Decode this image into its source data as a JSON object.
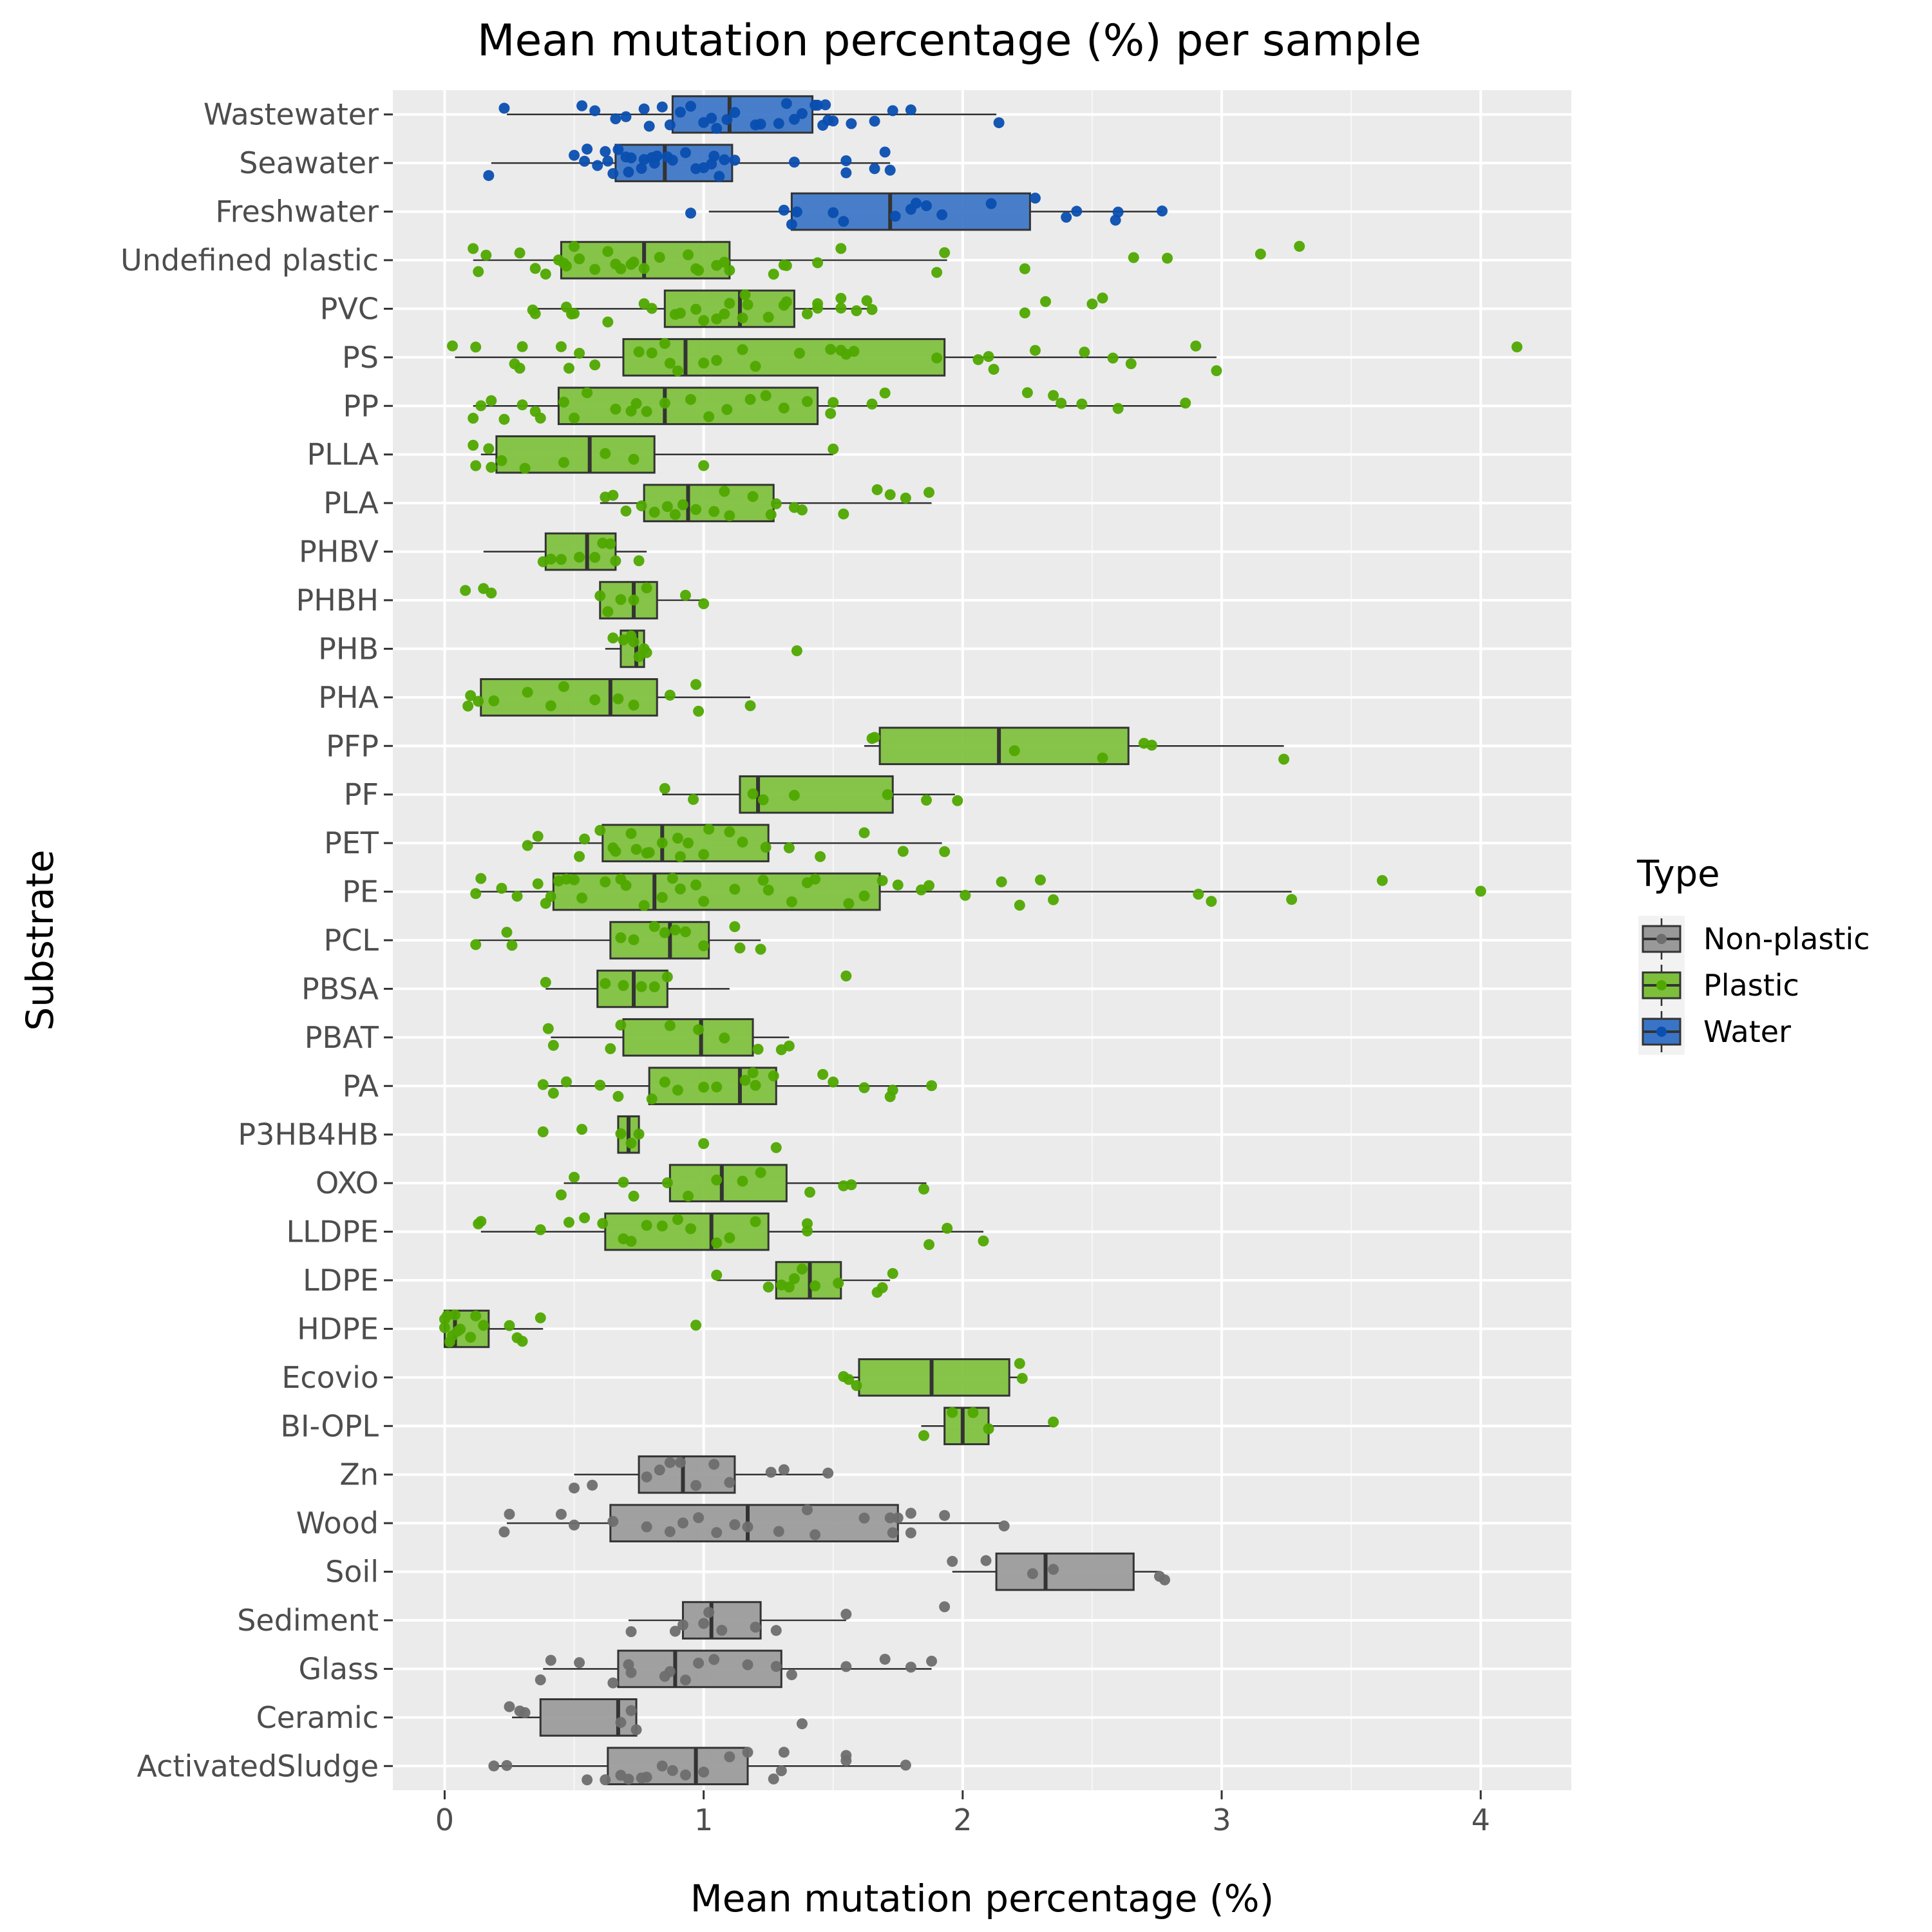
{
  "chart_data": {
    "type": "boxplot",
    "title": "Mean mutation percentage (%) per sample",
    "xlabel": "Mean mutation percentage (%)",
    "ylabel": "Substrate",
    "xlim": [
      -0.2,
      4.35
    ],
    "x_ticks": [
      0,
      1,
      2,
      3,
      4
    ],
    "grid": true,
    "legend": {
      "title": "Type",
      "placement": "right",
      "entries": [
        {
          "name": "Non-plastic",
          "color": "#999999",
          "point_color": "#6e6e6e"
        },
        {
          "name": "Plastic",
          "color": "#7dbf3b",
          "point_color": "#4fa800"
        },
        {
          "name": "Water",
          "color": "#3a74c6",
          "point_color": "#0a4fb0"
        }
      ]
    },
    "categories": [
      "Wastewater",
      "Seawater",
      "Freshwater",
      "Undefined plastic",
      "PVC",
      "PS",
      "PP",
      "PLLA",
      "PLA",
      "PHBV",
      "PHBH",
      "PHB",
      "PHA",
      "PFP",
      "PF",
      "PET",
      "PE",
      "PCL",
      "PBSA",
      "PBAT",
      "PA",
      "P3HB4HB",
      "OXO",
      "LLDPE",
      "LDPE",
      "HDPE",
      "Ecovio",
      "BI-OPL",
      "Zn",
      "Wood",
      "Soil",
      "Sediment",
      "Glass",
      "Ceramic",
      "ActivatedSludge"
    ],
    "boxes": [
      {
        "cat": "Wastewater",
        "type": "Water",
        "min": 0.24,
        "q1": 0.88,
        "median": 1.1,
        "q3": 1.42,
        "max": 2.13,
        "points": [
          0.66,
          0.77,
          1.03,
          1.05,
          1.09,
          1.35,
          1.43,
          1.46,
          1.48,
          1.57,
          1.66,
          1.8,
          2.14,
          0.53,
          0.7,
          0.84,
          0.95,
          1.0,
          1.2,
          1.22,
          1.32,
          1.38,
          1.5,
          1.73,
          0.23,
          0.58,
          0.79,
          0.87,
          0.91,
          1.12,
          1.29,
          1.44,
          1.47
        ]
      },
      {
        "cat": "Seawater",
        "type": "Water",
        "min": 0.18,
        "q1": 0.66,
        "median": 0.85,
        "q3": 1.11,
        "max": 1.72,
        "points": [
          0.72,
          0.77,
          0.81,
          1.06,
          1.35,
          1.72,
          0.5,
          0.54,
          0.65,
          0.71,
          0.8,
          1.03,
          1.55,
          1.66,
          1.7,
          0.59,
          0.62,
          0.76,
          0.88,
          0.97,
          1.04,
          1.08,
          1.12,
          1.55,
          0.17,
          0.63,
          0.67,
          0.82,
          0.93,
          1.0,
          0.55,
          0.7,
          0.86
        ]
      },
      {
        "cat": "Freshwater",
        "type": "Water",
        "min": 1.02,
        "q1": 1.34,
        "median": 1.72,
        "q3": 2.26,
        "max": 2.77,
        "points": [
          1.8,
          2.11,
          2.59,
          2.77,
          1.5,
          1.54,
          1.92,
          2.4,
          2.28,
          0.95,
          1.31,
          1.36,
          1.74,
          1.86,
          2.44,
          1.34,
          1.82,
          2.6
        ]
      },
      {
        "cat": "Undefined plastic",
        "type": "Plastic",
        "min": 0.11,
        "q1": 0.45,
        "median": 0.77,
        "q3": 1.1,
        "max": 1.94,
        "points": [
          0.13,
          0.46,
          0.5,
          0.66,
          0.72,
          0.83,
          0.97,
          1.05,
          3.15,
          0.35,
          0.39,
          0.44,
          0.63,
          0.73,
          1.31,
          0.98,
          1.08,
          1.32,
          1.53,
          1.9,
          0.11,
          0.29,
          0.52,
          0.68,
          0.94,
          1.1,
          1.93,
          2.24,
          2.66,
          2.79,
          3.3,
          0.16,
          0.47,
          0.58,
          0.77,
          1.27,
          1.44
        ]
      },
      {
        "cat": "PVC",
        "type": "Plastic",
        "min": 0.34,
        "q1": 0.85,
        "median": 1.14,
        "q3": 1.35,
        "max": 1.64,
        "points": [
          1.05,
          1.1,
          1.16,
          1.32,
          1.65,
          2.24,
          0.49,
          0.5,
          0.8,
          0.91,
          1.0,
          1.4,
          1.53,
          1.59,
          1.63,
          0.35,
          0.47,
          0.77,
          1.08,
          1.17,
          1.31,
          2.32,
          2.5,
          2.54,
          0.34,
          0.63,
          0.89,
          0.97,
          1.15,
          1.25,
          1.44,
          1.53,
          1.44
        ]
      },
      {
        "cat": "PS",
        "type": "Plastic",
        "min": 0.04,
        "q1": 0.69,
        "median": 0.93,
        "q3": 1.93,
        "max": 2.98,
        "points": [
          0.12,
          0.48,
          0.8,
          0.85,
          1.05,
          1.55,
          2.9,
          4.14,
          0.3,
          0.45,
          0.58,
          0.87,
          1.0,
          1.37,
          1.49,
          2.1,
          2.12,
          2.47,
          0.03,
          0.29,
          0.52,
          0.9,
          1.15,
          1.53,
          2.06,
          2.98,
          2.28,
          0.27,
          0.75,
          1.2,
          1.58,
          1.9,
          2.65,
          2.58
        ]
      },
      {
        "cat": "PP",
        "type": "Plastic",
        "min": 0.11,
        "q1": 0.44,
        "median": 0.85,
        "q3": 1.44,
        "max": 2.86,
        "points": [
          0.35,
          0.72,
          0.95,
          1.24,
          1.49,
          2.25,
          2.35,
          0.14,
          0.3,
          0.46,
          0.78,
          1.09,
          1.31,
          1.4,
          1.65,
          2.46,
          2.6,
          0.18,
          0.37,
          0.5,
          0.66,
          0.85,
          1.02,
          1.18,
          1.7,
          2.38,
          2.86,
          0.11,
          0.23,
          0.55,
          0.74,
          1.5
        ]
      },
      {
        "cat": "PLLA",
        "type": "Plastic",
        "min": 0.14,
        "q1": 0.2,
        "median": 0.56,
        "q3": 0.81,
        "max": 1.5,
        "points": [
          0.11,
          0.12,
          0.17,
          0.18,
          0.22,
          0.31,
          0.46,
          0.62,
          0.73,
          1.0,
          1.5
        ]
      },
      {
        "cat": "PLA",
        "type": "Plastic",
        "min": 0.6,
        "q1": 0.77,
        "median": 0.94,
        "q3": 1.27,
        "max": 1.88,
        "points": [
          0.7,
          0.76,
          0.86,
          0.92,
          1.08,
          1.26,
          1.38,
          1.67,
          1.35,
          0.62,
          0.81,
          0.97,
          1.1,
          1.28,
          1.54,
          1.72,
          1.87,
          0.65,
          0.89,
          1.04,
          1.19,
          1.78
        ]
      },
      {
        "cat": "PHBV",
        "type": "Plastic",
        "min": 0.15,
        "q1": 0.39,
        "median": 0.55,
        "q3": 0.66,
        "max": 0.78,
        "points": [
          0.38,
          0.45,
          0.52,
          0.58,
          0.61,
          0.66,
          0.75,
          0.41,
          0.64
        ]
      },
      {
        "cat": "PHBH",
        "type": "Plastic",
        "min": 0.6,
        "q1": 0.6,
        "median": 0.73,
        "q3": 0.82,
        "max": 1.0,
        "points": [
          0.08,
          0.15,
          0.18,
          0.6,
          0.68,
          0.73,
          0.78,
          0.93,
          1.0,
          0.63
        ]
      },
      {
        "cat": "PHB",
        "type": "Plastic",
        "min": 0.62,
        "q1": 0.68,
        "median": 0.74,
        "q3": 0.77,
        "max": 0.78,
        "points": [
          0.69,
          0.72,
          0.73,
          0.75,
          0.77,
          0.78,
          1.36,
          0.65
        ]
      },
      {
        "cat": "PHA",
        "type": "Plastic",
        "min": 0.14,
        "q1": 0.14,
        "median": 0.64,
        "q3": 0.82,
        "max": 1.18,
        "points": [
          0.09,
          0.1,
          0.13,
          0.19,
          0.32,
          0.46,
          0.58,
          0.67,
          0.73,
          0.87,
          0.97,
          0.98,
          1.18,
          0.41
        ]
      },
      {
        "cat": "PFP",
        "type": "Plastic",
        "min": 1.62,
        "q1": 1.68,
        "median": 2.14,
        "q3": 2.64,
        "max": 3.24,
        "points": [
          1.65,
          1.66,
          2.2,
          2.54,
          2.7,
          2.73,
          3.24
        ]
      },
      {
        "cat": "PF",
        "type": "Plastic",
        "min": 0.84,
        "q1": 1.14,
        "median": 1.21,
        "q3": 1.73,
        "max": 1.97,
        "points": [
          0.96,
          1.19,
          1.23,
          1.35,
          1.71,
          1.86,
          1.98,
          0.85
        ]
      },
      {
        "cat": "PET",
        "type": "Plastic",
        "min": 0.32,
        "q1": 0.61,
        "median": 0.84,
        "q3": 1.25,
        "max": 1.92,
        "points": [
          0.36,
          0.6,
          0.72,
          0.78,
          0.84,
          0.9,
          1.02,
          1.1,
          1.45,
          1.93,
          0.32,
          0.52,
          0.66,
          0.74,
          0.79,
          0.91,
          1.24,
          1.33,
          1.62,
          1.77,
          0.54,
          0.65,
          0.94,
          1.0,
          1.15
        ]
      },
      {
        "cat": "PE",
        "type": "Plastic",
        "min": 0.12,
        "q1": 0.42,
        "median": 0.81,
        "q3": 1.68,
        "max": 3.27,
        "points": [
          0.14,
          0.41,
          0.44,
          0.62,
          0.77,
          0.91,
          1.25,
          1.43,
          1.56,
          1.84,
          2.01,
          2.22,
          2.35,
          3.27,
          0.22,
          0.36,
          0.53,
          0.68,
          0.88,
          1.0,
          1.12,
          1.34,
          1.62,
          1.75,
          2.15,
          2.3,
          2.91,
          0.12,
          0.28,
          0.5,
          0.7,
          0.97,
          1.23,
          1.4,
          1.69,
          1.87,
          2.96,
          3.62,
          4.0,
          0.39,
          0.47,
          0.84
        ]
      },
      {
        "cat": "PCL",
        "type": "Plastic",
        "min": 0.12,
        "q1": 0.64,
        "median": 0.87,
        "q3": 1.02,
        "max": 1.22,
        "points": [
          0.26,
          0.68,
          0.81,
          0.89,
          0.93,
          1.0,
          1.22,
          0.12,
          0.24,
          0.73,
          0.85,
          1.14,
          1.12
        ]
      },
      {
        "cat": "PBSA",
        "type": "Plastic",
        "min": 0.39,
        "q1": 0.59,
        "median": 0.73,
        "q3": 0.86,
        "max": 1.1,
        "points": [
          0.39,
          0.62,
          0.69,
          0.76,
          0.81,
          0.86,
          1.55
        ]
      },
      {
        "cat": "PBAT",
        "type": "Plastic",
        "min": 0.41,
        "q1": 0.69,
        "median": 0.99,
        "q3": 1.19,
        "max": 1.33,
        "points": [
          0.64,
          0.87,
          1.08,
          1.3,
          1.33,
          0.4,
          0.68,
          0.98,
          1.21,
          0.42
        ]
      },
      {
        "cat": "PA",
        "type": "Plastic",
        "min": 0.38,
        "q1": 0.79,
        "median": 1.14,
        "q3": 1.28,
        "max": 1.88,
        "points": [
          0.47,
          0.8,
          1.16,
          1.46,
          1.5,
          1.73,
          1.88,
          0.38,
          0.6,
          0.9,
          1.05,
          1.19,
          1.62,
          1.72,
          0.42,
          0.67,
          0.85,
          1.2,
          1.27,
          1.0
        ]
      },
      {
        "cat": "P3HB4HB",
        "type": "Plastic",
        "min": 0.67,
        "q1": 0.67,
        "median": 0.71,
        "q3": 0.75,
        "max": 0.76,
        "points": [
          0.53,
          0.68,
          0.72,
          0.75,
          0.38,
          1.0,
          1.28
        ]
      },
      {
        "cat": "OXO",
        "type": "Plastic",
        "min": 0.46,
        "q1": 0.87,
        "median": 1.07,
        "q3": 1.32,
        "max": 1.86,
        "points": [
          0.86,
          1.05,
          1.15,
          1.41,
          1.57,
          0.45,
          0.73,
          0.94,
          1.22,
          1.54,
          1.85,
          0.5,
          0.69
        ]
      },
      {
        "cat": "LLDPE",
        "type": "Plastic",
        "min": 0.14,
        "q1": 0.62,
        "median": 1.03,
        "q3": 1.25,
        "max": 2.08,
        "points": [
          0.14,
          0.72,
          0.78,
          0.9,
          1.2,
          2.08,
          0.48,
          0.54,
          0.69,
          0.84,
          1.05,
          1.4,
          1.87,
          1.94,
          0.13,
          0.37,
          0.61,
          0.95,
          1.1,
          1.4
        ]
      },
      {
        "cat": "LDPE",
        "type": "Plastic",
        "min": 1.05,
        "q1": 1.28,
        "median": 1.41,
        "q3": 1.53,
        "max": 1.72,
        "points": [
          1.25,
          1.3,
          1.43,
          1.67,
          1.69,
          1.05,
          1.33,
          1.38,
          1.52,
          1.73,
          1.35
        ]
      },
      {
        "cat": "HDPE",
        "type": "Plastic",
        "min": 0.0,
        "q1": 0.0,
        "median": 0.04,
        "q3": 0.17,
        "max": 0.38,
        "points": [
          0.01,
          0.02,
          0.06,
          0.1,
          0.28,
          0.0,
          0.03,
          0.05,
          0.12,
          0.3,
          0.0,
          0.04,
          0.15,
          0.25,
          0.37,
          0.97
        ]
      },
      {
        "cat": "Ecovio",
        "type": "Plastic",
        "min": 1.55,
        "q1": 1.6,
        "median": 1.88,
        "q3": 2.18,
        "max": 2.23,
        "points": [
          1.54,
          1.56,
          1.59,
          2.23,
          2.22
        ]
      },
      {
        "cat": "BI-OPL",
        "type": "Plastic",
        "min": 1.84,
        "q1": 1.93,
        "median": 2.0,
        "q3": 2.1,
        "max": 2.35,
        "points": [
          1.85,
          1.96,
          2.1,
          2.04,
          2.35
        ]
      },
      {
        "cat": "Zn",
        "type": "Non-plastic",
        "min": 0.5,
        "q1": 0.75,
        "median": 0.92,
        "q3": 1.12,
        "max": 1.48,
        "points": [
          0.83,
          0.91,
          1.04,
          1.31,
          0.5,
          0.78,
          0.97,
          1.26,
          0.57,
          0.87,
          1.1,
          1.48
        ]
      },
      {
        "cat": "Wood",
        "type": "Non-plastic",
        "min": 0.24,
        "q1": 0.64,
        "median": 1.17,
        "q3": 1.75,
        "max": 2.15,
        "points": [
          0.65,
          0.98,
          1.29,
          1.43,
          1.75,
          2.16,
          0.45,
          0.78,
          0.92,
          1.12,
          1.4,
          1.62,
          1.72,
          1.8,
          1.93,
          0.25,
          0.5,
          0.87,
          1.05,
          1.17,
          1.73,
          1.8,
          0.23
        ]
      },
      {
        "cat": "Soil",
        "type": "Non-plastic",
        "min": 1.96,
        "q1": 2.13,
        "median": 2.32,
        "q3": 2.66,
        "max": 2.76,
        "points": [
          2.09,
          2.76,
          2.78,
          1.96,
          2.27,
          2.35
        ]
      },
      {
        "cat": "Sediment",
        "type": "Non-plastic",
        "min": 0.71,
        "q1": 0.92,
        "median": 1.03,
        "q3": 1.22,
        "max": 1.55,
        "points": [
          0.89,
          1.0,
          1.02,
          1.28,
          1.55,
          0.72,
          0.92,
          1.07,
          1.2,
          1.93
        ]
      },
      {
        "cat": "Glass",
        "type": "Non-plastic",
        "min": 0.38,
        "q1": 0.67,
        "median": 0.89,
        "q3": 1.3,
        "max": 1.88,
        "points": [
          0.37,
          0.65,
          0.85,
          0.98,
          1.04,
          1.7,
          0.41,
          0.71,
          0.93,
          1.17,
          1.34,
          1.88,
          0.52,
          0.72,
          0.87,
          1.55,
          1.8,
          1.28
        ]
      },
      {
        "cat": "Ceramic",
        "type": "Non-plastic",
        "min": 0.26,
        "q1": 0.37,
        "median": 0.67,
        "q3": 0.74,
        "max": 0.74,
        "points": [
          0.29,
          0.72,
          0.74,
          1.38,
          0.31,
          0.25,
          0.68
        ]
      },
      {
        "cat": "ActivatedSludge",
        "type": "Non-plastic",
        "min": 0.2,
        "q1": 0.63,
        "median": 0.97,
        "q3": 1.17,
        "max": 1.77,
        "points": [
          0.68,
          0.84,
          1.0,
          1.31,
          1.55,
          0.19,
          0.55,
          0.78,
          0.93,
          1.1,
          1.3,
          1.78,
          0.24,
          0.62,
          0.71,
          0.76,
          1.17,
          1.27,
          1.55,
          0.88
        ]
      }
    ]
  }
}
